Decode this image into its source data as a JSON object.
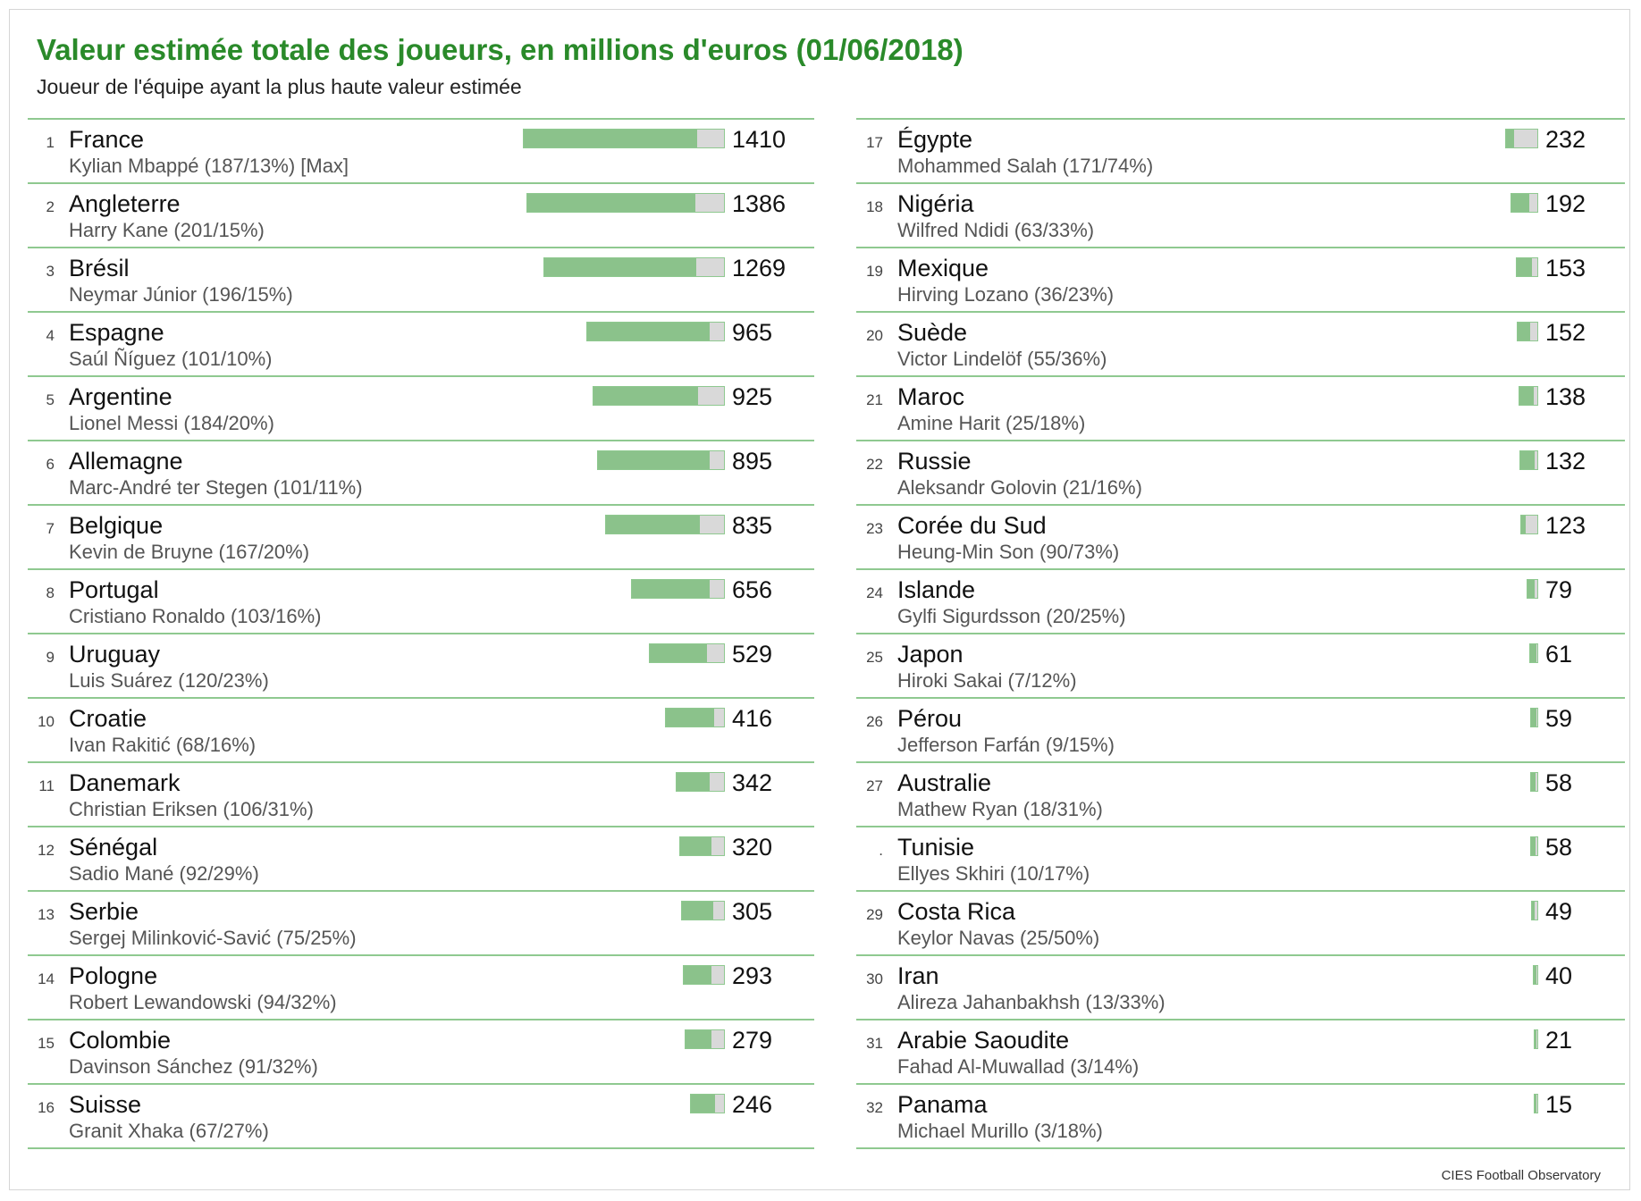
{
  "title": "Valeur estimée totale des joueurs, en millions d'euros (01/06/2018)",
  "subtitle": "Joueur de l'équipe ayant la plus haute valeur estimée",
  "source": "CIES Football Observatory",
  "colors": {
    "title": "#2a8a2a",
    "bar_green": "#8bc28b",
    "bar_gray": "#d9d9d9",
    "divider": "#8fc990"
  },
  "chart_data": {
    "type": "bar",
    "orientation": "horizontal",
    "bar_max_value": 1410,
    "series": [
      {
        "values": [
          1410,
          1386,
          1269,
          965,
          925,
          895,
          835,
          656,
          529,
          416,
          342,
          320,
          305,
          293,
          279,
          246,
          232,
          192,
          153,
          152,
          138,
          132,
          123,
          79,
          61,
          59,
          58,
          58,
          49,
          40,
          21,
          15
        ]
      },
      {
        "values": [
          187,
          201,
          196,
          101,
          184,
          101,
          167,
          103,
          120,
          68,
          106,
          92,
          75,
          94,
          91,
          67,
          171,
          63,
          36,
          55,
          25,
          21,
          90,
          20,
          7,
          9,
          18,
          10,
          25,
          13,
          3,
          3
        ]
      }
    ],
    "rows": [
      {
        "rank": "1",
        "country": "France",
        "player": "Kylian Mbappé (187/13%) [Max]",
        "value": 1410,
        "top_player_value": 187
      },
      {
        "rank": "2",
        "country": "Angleterre",
        "player": "Harry Kane (201/15%)",
        "value": 1386,
        "top_player_value": 201
      },
      {
        "rank": "3",
        "country": "Brésil",
        "player": "Neymar Júnior (196/15%)",
        "value": 1269,
        "top_player_value": 196
      },
      {
        "rank": "4",
        "country": "Espagne",
        "player": "Saúl Ñíguez (101/10%)",
        "value": 965,
        "top_player_value": 101
      },
      {
        "rank": "5",
        "country": "Argentine",
        "player": "Lionel Messi (184/20%)",
        "value": 925,
        "top_player_value": 184
      },
      {
        "rank": "6",
        "country": "Allemagne",
        "player": "Marc-André ter Stegen (101/11%)",
        "value": 895,
        "top_player_value": 101
      },
      {
        "rank": "7",
        "country": "Belgique",
        "player": "Kevin de Bruyne (167/20%)",
        "value": 835,
        "top_player_value": 167
      },
      {
        "rank": "8",
        "country": "Portugal",
        "player": "Cristiano Ronaldo (103/16%)",
        "value": 656,
        "top_player_value": 103
      },
      {
        "rank": "9",
        "country": "Uruguay",
        "player": "Luis Suárez (120/23%)",
        "value": 529,
        "top_player_value": 120
      },
      {
        "rank": "10",
        "country": "Croatie",
        "player": "Ivan Rakitić (68/16%)",
        "value": 416,
        "top_player_value": 68
      },
      {
        "rank": "11",
        "country": "Danemark",
        "player": "Christian Eriksen (106/31%)",
        "value": 342,
        "top_player_value": 106
      },
      {
        "rank": "12",
        "country": "Sénégal",
        "player": "Sadio Mané (92/29%)",
        "value": 320,
        "top_player_value": 92
      },
      {
        "rank": "13",
        "country": "Serbie",
        "player": "Sergej Milinković-Savić (75/25%)",
        "value": 305,
        "top_player_value": 75
      },
      {
        "rank": "14",
        "country": "Pologne",
        "player": "Robert Lewandowski (94/32%)",
        "value": 293,
        "top_player_value": 94
      },
      {
        "rank": "15",
        "country": "Colombie",
        "player": "Davinson Sánchez (91/32%)",
        "value": 279,
        "top_player_value": 91
      },
      {
        "rank": "16",
        "country": "Suisse",
        "player": "Granit Xhaka (67/27%)",
        "value": 246,
        "top_player_value": 67
      },
      {
        "rank": "17",
        "country": "Égypte",
        "player": "Mohammed Salah (171/74%)",
        "value": 232,
        "top_player_value": 171
      },
      {
        "rank": "18",
        "country": "Nigéria",
        "player": "Wilfred Ndidi (63/33%)",
        "value": 192,
        "top_player_value": 63
      },
      {
        "rank": "19",
        "country": "Mexique",
        "player": "Hirving Lozano (36/23%)",
        "value": 153,
        "top_player_value": 36
      },
      {
        "rank": "20",
        "country": "Suède",
        "player": "Victor Lindelöf (55/36%)",
        "value": 152,
        "top_player_value": 55
      },
      {
        "rank": "21",
        "country": "Maroc",
        "player": "Amine Harit (25/18%)",
        "value": 138,
        "top_player_value": 25
      },
      {
        "rank": "22",
        "country": "Russie",
        "player": "Aleksandr Golovin (21/16%)",
        "value": 132,
        "top_player_value": 21
      },
      {
        "rank": "23",
        "country": "Corée du Sud",
        "player": "Heung-Min Son (90/73%)",
        "value": 123,
        "top_player_value": 90
      },
      {
        "rank": "24",
        "country": "Islande",
        "player": "Gylfi Sigurdsson (20/25%)",
        "value": 79,
        "top_player_value": 20
      },
      {
        "rank": "25",
        "country": "Japon",
        "player": "Hiroki Sakai (7/12%)",
        "value": 61,
        "top_player_value": 7
      },
      {
        "rank": "26",
        "country": "Pérou",
        "player": "Jefferson Farfán (9/15%)",
        "value": 59,
        "top_player_value": 9
      },
      {
        "rank": "27",
        "country": "Australie",
        "player": "Mathew Ryan (18/31%)",
        "value": 58,
        "top_player_value": 18
      },
      {
        "rank": ".",
        "country": "Tunisie",
        "player": "Ellyes Skhiri (10/17%)",
        "value": 58,
        "top_player_value": 10
      },
      {
        "rank": "29",
        "country": "Costa Rica",
        "player": "Keylor Navas (25/50%)",
        "value": 49,
        "top_player_value": 25
      },
      {
        "rank": "30",
        "country": "Iran",
        "player": "Alireza Jahanbakhsh (13/33%)",
        "value": 40,
        "top_player_value": 13
      },
      {
        "rank": "31",
        "country": "Arabie Saoudite",
        "player": "Fahad Al-Muwallad (3/14%)",
        "value": 21,
        "top_player_value": 3
      },
      {
        "rank": "32",
        "country": "Panama",
        "player": "Michael Murillo (3/18%)",
        "value": 15,
        "top_player_value": 3
      }
    ]
  }
}
